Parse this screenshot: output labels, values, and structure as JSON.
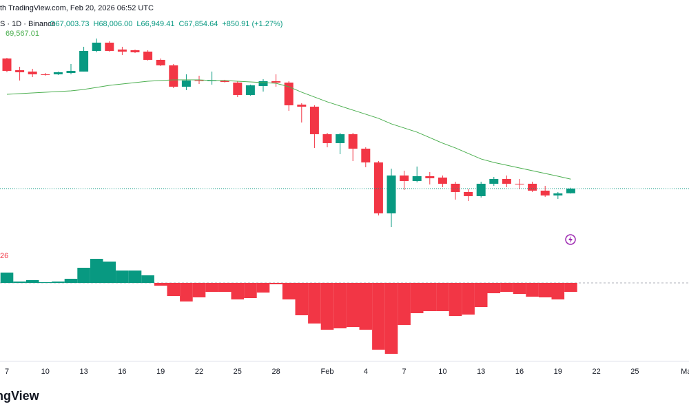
{
  "chart_data": {
    "type": "candlestick",
    "header": "th TradingView.com, Feb 20, 2026 06:52 UTC",
    "symbol": "S · 1D · Binance",
    "ohlc_labels": [
      "O67,003.73",
      "H68,006.00",
      "L66,949.41",
      "C67,854.64"
    ],
    "change_label": "+850.91 (+1.27%)",
    "categories": [
      "7",
      null,
      null,
      "10",
      null,
      null,
      "13",
      null,
      null,
      "16",
      null,
      null,
      "19",
      null,
      null,
      "22",
      null,
      null,
      "25",
      null,
      null,
      "28",
      null,
      null,
      null,
      "Feb",
      null,
      null,
      "4",
      null,
      null,
      "7",
      null,
      null,
      "10",
      null,
      null,
      "13",
      null,
      null,
      "16",
      null,
      null,
      "19",
      null,
      null,
      "22",
      null,
      null,
      "25",
      null,
      null,
      null,
      "Ma"
    ],
    "open": [
      91480,
      89355,
      89105,
      88605,
      88605,
      88855,
      89105,
      92855,
      94355,
      93105,
      92980,
      92730,
      91230,
      90230,
      86355,
      87480,
      87355,
      87480,
      87105,
      84855,
      86480,
      87355,
      87105,
      83105,
      82730,
      77730,
      76105,
      77730,
      75105,
      72605,
      63355,
      70230,
      69230,
      70105,
      69855,
      68730,
      67230,
      66480,
      68730,
      69605,
      68730,
      68730,
      67480,
      66605,
      67003.73,
      null,
      null,
      null,
      null,
      null,
      null,
      null,
      null,
      null
    ],
    "high": [
      91605,
      89980,
      89605,
      88855,
      89105,
      90480,
      93605,
      95105,
      94605,
      93605,
      93105,
      92980,
      91480,
      90480,
      88605,
      88355,
      89105,
      87605,
      87355,
      86730,
      87730,
      88605,
      87355,
      83355,
      82980,
      77980,
      77980,
      77980,
      75355,
      72855,
      71480,
      71105,
      71855,
      70855,
      70230,
      69105,
      67730,
      69105,
      69980,
      70230,
      69605,
      69105,
      68355,
      67230,
      68006.0,
      null,
      null,
      null,
      null,
      null,
      null,
      null,
      null,
      null
    ],
    "low": [
      88980,
      87480,
      88105,
      88355,
      88480,
      88605,
      89105,
      92605,
      92730,
      92105,
      92480,
      91105,
      90105,
      86105,
      85730,
      86855,
      86730,
      87105,
      84480,
      84730,
      85480,
      86355,
      81980,
      79855,
      75230,
      75355,
      74105,
      72855,
      71730,
      62980,
      60855,
      67605,
      68980,
      68605,
      68105,
      65855,
      65605,
      66230,
      68355,
      68105,
      67730,
      67230,
      66355,
      65980,
      66949.41,
      null,
      null,
      null,
      null,
      null,
      null,
      null,
      null,
      null
    ],
    "close": [
      89230,
      88980,
      88605,
      88480,
      88980,
      89230,
      92855,
      94355,
      92855,
      92730,
      92605,
      91230,
      90230,
      86355,
      87480,
      87355,
      87480,
      87230,
      84855,
      86605,
      87355,
      87105,
      82980,
      82730,
      77730,
      76105,
      77730,
      75105,
      72605,
      63355,
      70230,
      69230,
      70105,
      69730,
      68730,
      67230,
      66480,
      68730,
      69605,
      68730,
      68605,
      67480,
      66605,
      66980,
      67854.64,
      null,
      null,
      null,
      null,
      null,
      null,
      null,
      null,
      null
    ],
    "up_color": "#089981",
    "down_color": "#f23645",
    "ylim": [
      59600,
      98350
    ],
    "sma": {
      "color": "#4caf50",
      "value_label": "69,567.01",
      "values": [
        84980,
        85105,
        85230,
        85355,
        85480,
        85605,
        85855,
        86230,
        86605,
        86855,
        87105,
        87355,
        87480,
        87605,
        87605,
        87605,
        87480,
        87480,
        87355,
        87230,
        87105,
        86980,
        86355,
        85355,
        84480,
        83605,
        82855,
        82105,
        81355,
        80605,
        79605,
        78855,
        78105,
        77105,
        76105,
        75230,
        74230,
        73230,
        72605,
        72105,
        71605,
        71105,
        70605,
        70105,
        69567.01,
        null,
        null,
        null,
        null,
        null,
        null,
        null,
        null,
        null
      ]
    },
    "histogram": {
      "type": "bar",
      "label": "26",
      "up_color": "#089981",
      "down_color": "#f23645",
      "ylim": [
        -2180,
        1220
      ],
      "values": [
        300,
        40,
        80,
        20,
        40,
        120,
        440,
        700,
        620,
        360,
        360,
        220,
        -80,
        -380,
        -540,
        -420,
        -260,
        -260,
        -480,
        -440,
        -280,
        -40,
        -480,
        -940,
        -1180,
        -1360,
        -1320,
        -1280,
        -1360,
        -1940,
        -2060,
        -1220,
        -880,
        -820,
        -820,
        -960,
        -920,
        -700,
        -300,
        -260,
        -320,
        -400,
        -420,
        -480,
        -260,
        null,
        null,
        null,
        null,
        null,
        null,
        null,
        null,
        null
      ]
    },
    "brand": "ngView"
  }
}
